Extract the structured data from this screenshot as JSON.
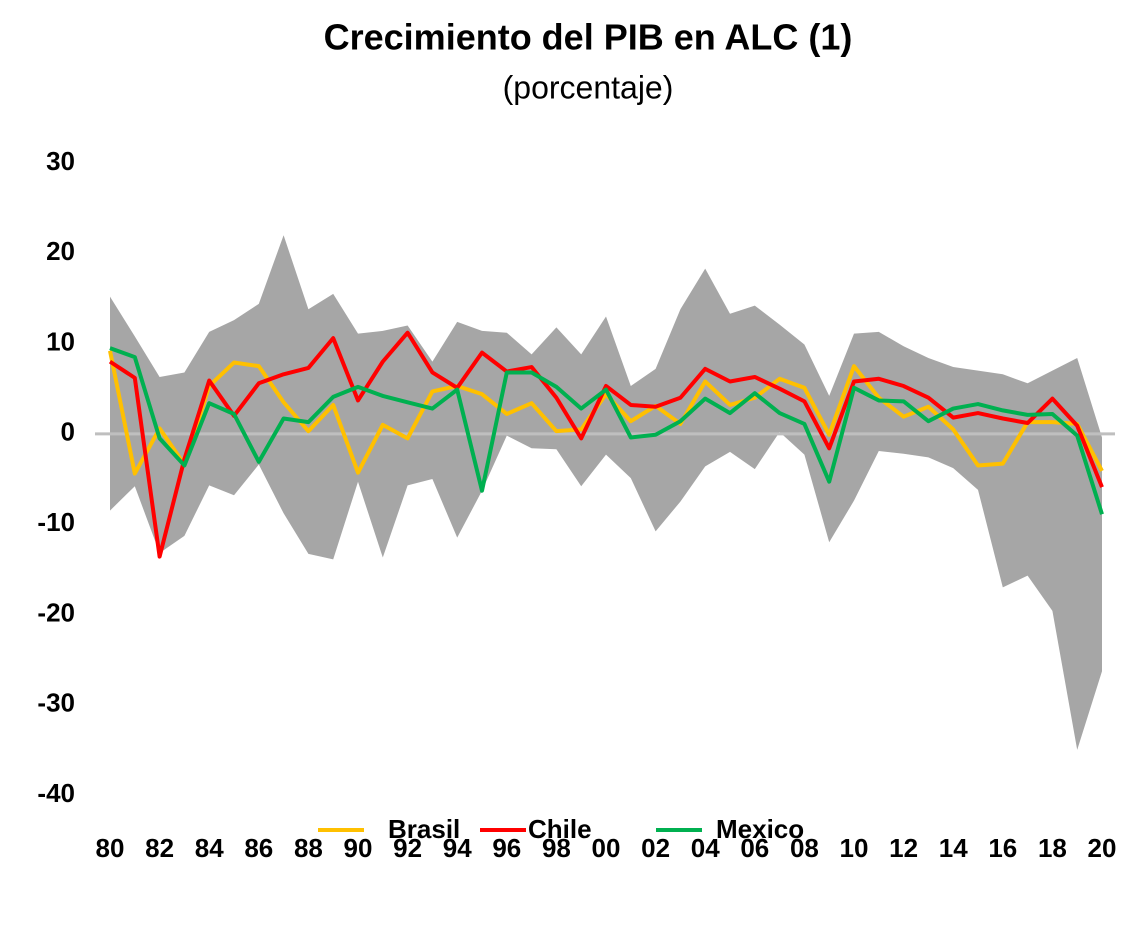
{
  "chart_data": {
    "type": "line",
    "title": "Crecimiento del PIB en ALC (1)",
    "subtitle": "(porcentaje)",
    "categories": [
      "80",
      null,
      "82",
      null,
      "84",
      null,
      "86",
      null,
      "88",
      null,
      "90",
      null,
      "92",
      null,
      "94",
      null,
      "96",
      null,
      "98",
      null,
      "00",
      null,
      "02",
      null,
      "04",
      null,
      "06",
      null,
      "08",
      null,
      "10",
      null,
      "12",
      null,
      "14",
      null,
      "16",
      null,
      "18",
      null,
      "20"
    ],
    "band": {
      "color": "#a6a6a6",
      "upper": [
        15.2,
        10.8,
        6.3,
        6.8,
        11.3,
        12.6,
        14.4,
        22.0,
        13.8,
        15.5,
        11.1,
        11.4,
        12.0,
        8.0,
        12.4,
        11.4,
        11.2,
        8.8,
        11.8,
        8.8,
        13.0,
        5.3,
        7.2,
        13.8,
        18.3,
        13.3,
        14.2,
        12.1,
        9.9,
        4.2,
        11.1,
        11.3,
        9.7,
        8.4,
        7.4,
        7.0,
        6.6,
        5.6,
        7.0,
        8.4,
        -0.4
      ],
      "lower": [
        -8.5,
        -5.8,
        -13.2,
        -11.3,
        -5.7,
        -6.8,
        -3.4,
        -8.8,
        -13.3,
        -13.9,
        -5.3,
        -13.7,
        -5.7,
        -5.0,
        -11.5,
        -6.3,
        -0.2,
        -1.6,
        -1.7,
        -5.8,
        -2.3,
        -4.9,
        -10.8,
        -7.5,
        -3.6,
        -2.0,
        -3.9,
        0.2,
        -2.3,
        -12.0,
        -7.4,
        -1.9,
        -2.2,
        -2.6,
        -3.8,
        -6.2,
        -17.0,
        -15.7,
        -19.6,
        -35.0,
        -26.3
      ]
    },
    "series": [
      {
        "name": "Brasil",
        "color": "#ffc000",
        "values": [
          9.2,
          -4.4,
          0.6,
          -3.4,
          5.3,
          7.9,
          7.5,
          3.5,
          0.3,
          3.2,
          -4.3,
          1.0,
          -0.5,
          4.7,
          5.3,
          4.4,
          2.2,
          3.4,
          0.3,
          0.5,
          4.4,
          1.4,
          3.1,
          1.1,
          5.8,
          3.2,
          4.0,
          6.1,
          5.1,
          -0.1,
          7.5,
          4.0,
          1.9,
          3.0,
          0.5,
          -3.5,
          -3.3,
          1.3,
          1.3,
          1.1,
          -4.1
        ]
      },
      {
        "name": "Chile",
        "color": "#ff0000",
        "values": [
          8.0,
          6.2,
          -13.6,
          -2.8,
          5.9,
          2.0,
          5.6,
          6.6,
          7.3,
          10.6,
          3.7,
          8.0,
          11.2,
          6.8,
          5.1,
          9.0,
          6.9,
          7.4,
          4.0,
          -0.5,
          5.3,
          3.2,
          3.0,
          4.0,
          7.2,
          5.8,
          6.3,
          5.0,
          3.6,
          -1.6,
          5.8,
          6.1,
          5.3,
          4.0,
          1.8,
          2.3,
          1.7,
          1.2,
          3.9,
          0.9,
          -5.9
        ]
      },
      {
        "name": "Mexico",
        "color": "#00b050",
        "values": [
          9.5,
          8.5,
          -0.5,
          -3.5,
          3.4,
          2.2,
          -3.1,
          1.7,
          1.3,
          4.1,
          5.2,
          4.2,
          3.5,
          2.8,
          4.9,
          -6.3,
          6.8,
          6.8,
          5.2,
          2.8,
          4.9,
          -0.4,
          -0.1,
          1.4,
          3.9,
          2.3,
          4.5,
          2.3,
          1.1,
          -5.3,
          5.1,
          3.7,
          3.6,
          1.4,
          2.8,
          3.3,
          2.6,
          2.1,
          2.2,
          -0.2,
          -8.9
        ]
      }
    ],
    "ylim": [
      -40,
      30
    ],
    "yticks": [
      -40,
      -30,
      -20,
      -10,
      0,
      10,
      20,
      30
    ],
    "grid": false,
    "legend": "bottom"
  }
}
